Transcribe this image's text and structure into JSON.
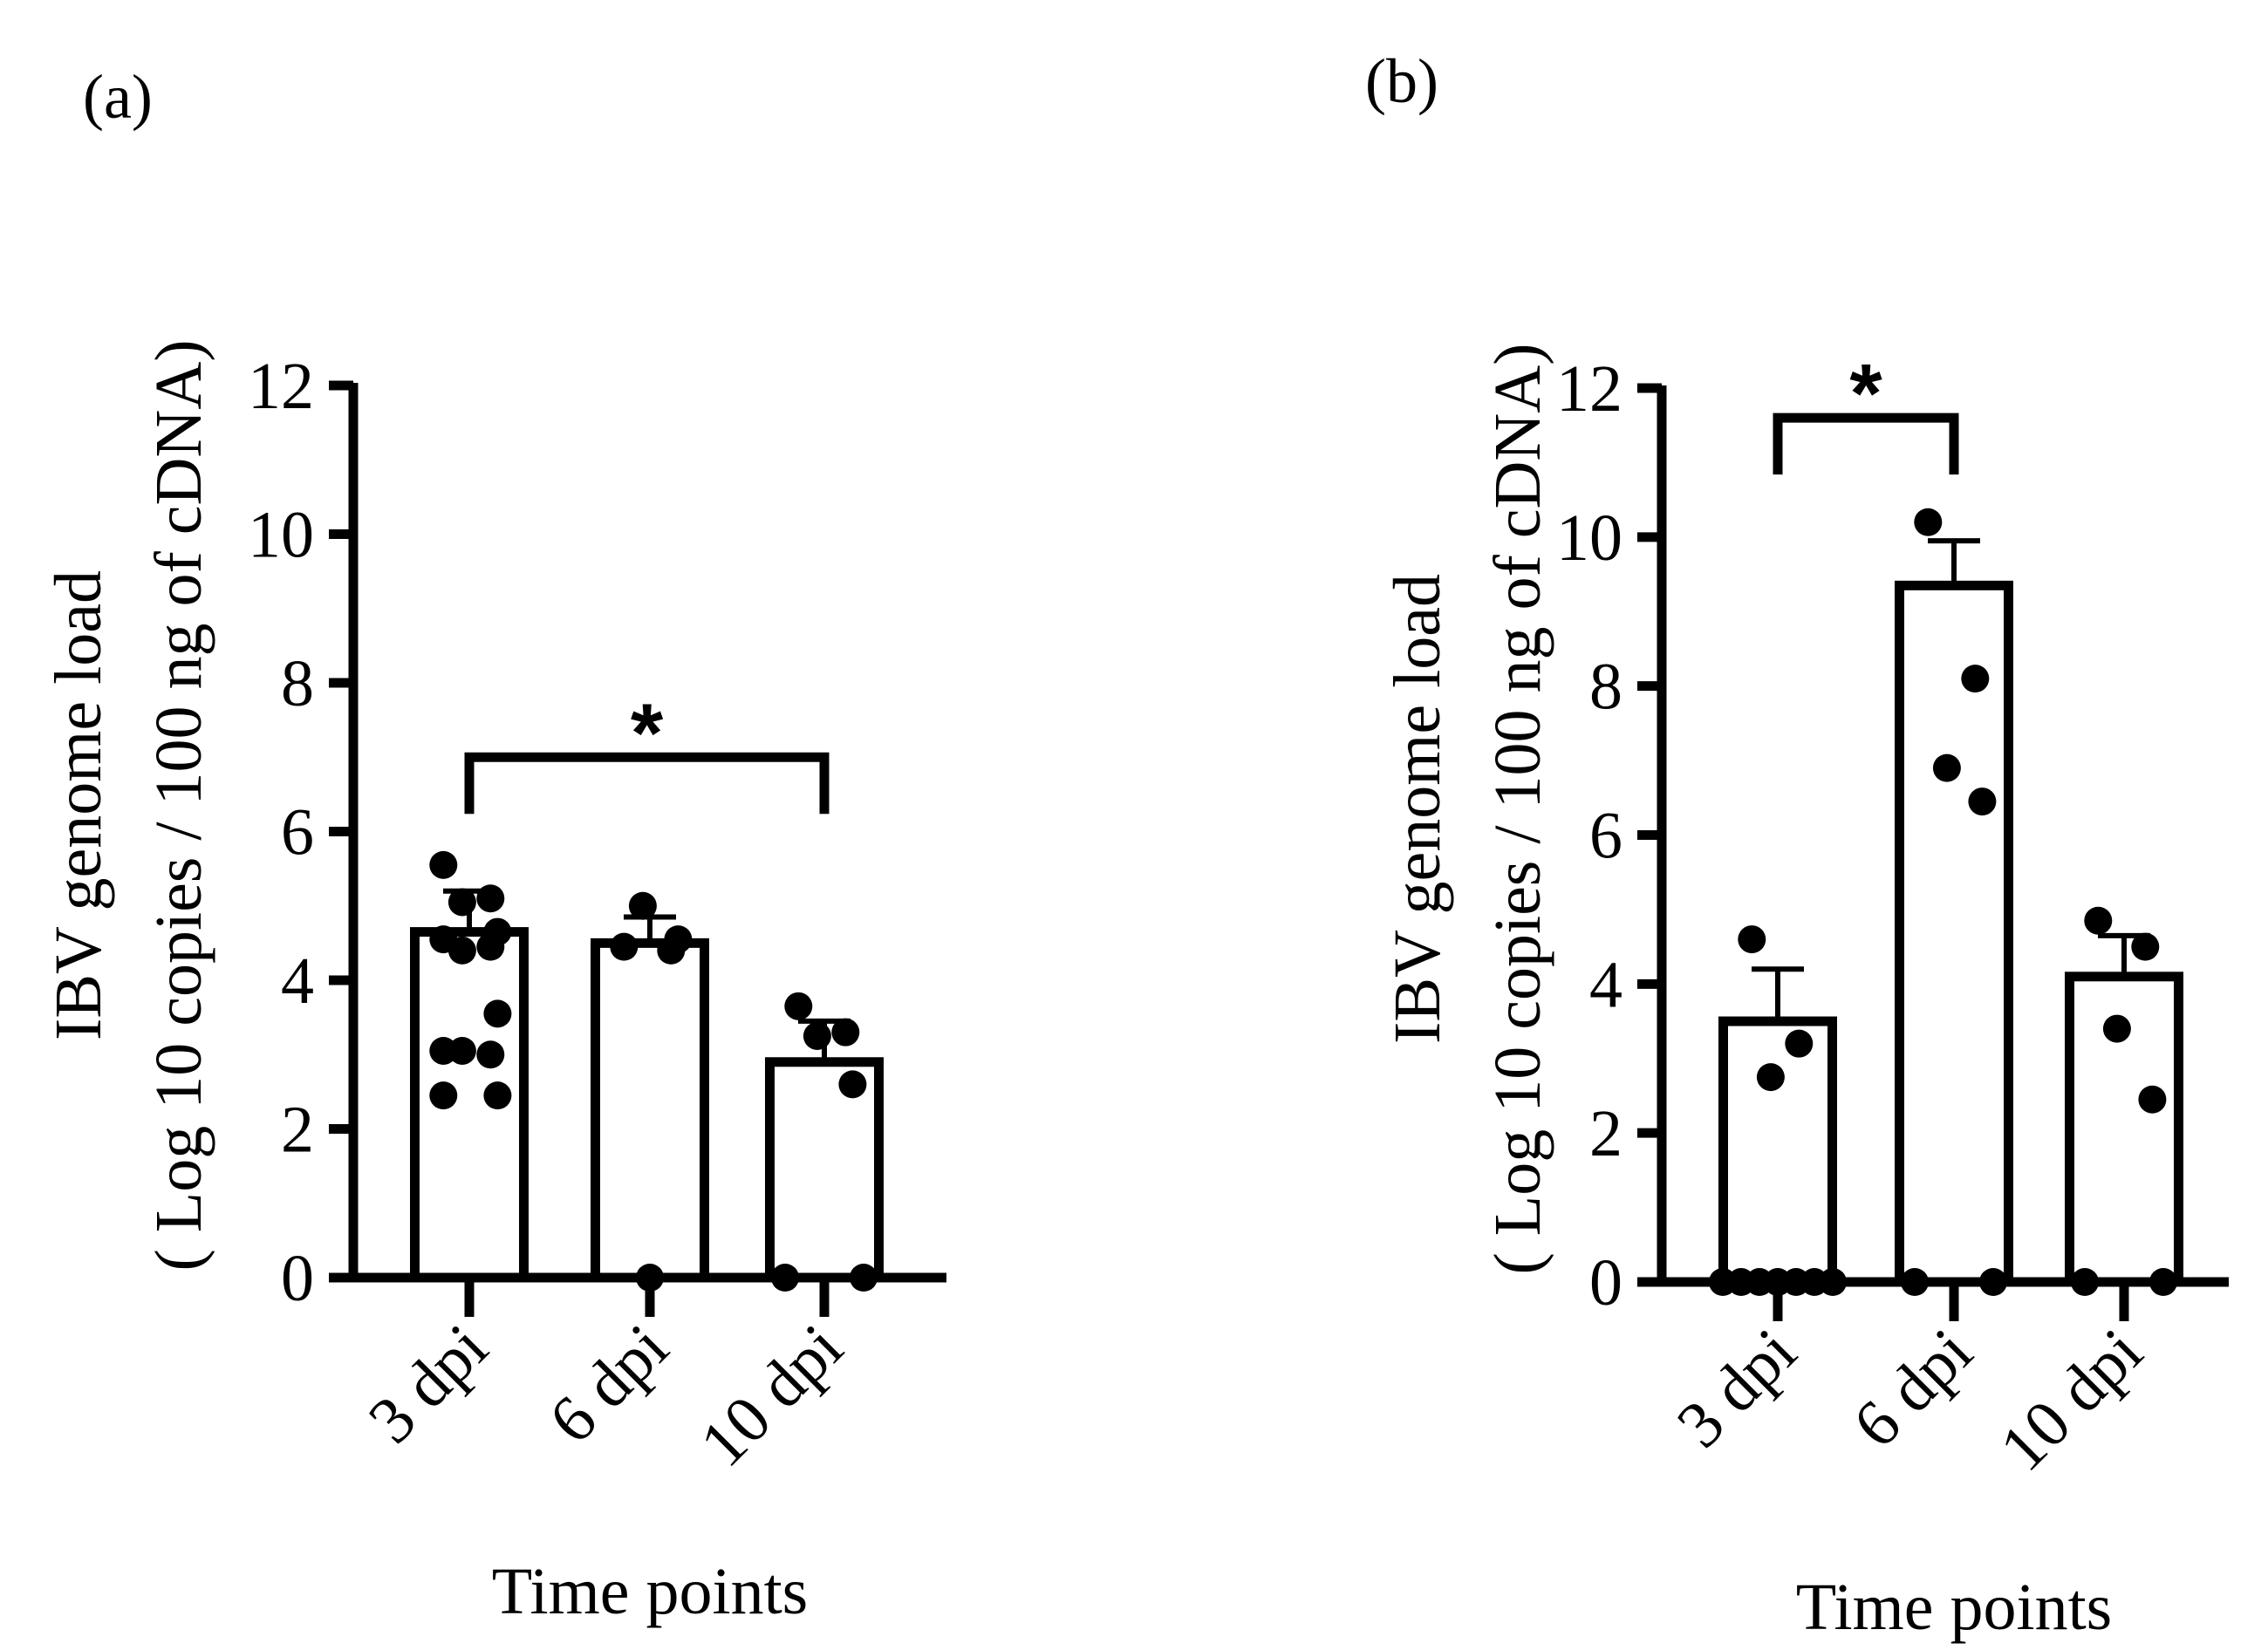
{
  "chart_data": [
    {
      "panel_label": "(a)",
      "type": "bar",
      "categories": [
        "3 dpi",
        "6 dpi",
        "10 dpi"
      ],
      "values": [
        4.65,
        4.5,
        2.9
      ],
      "sem": [
        0.55,
        0.35,
        0.55
      ],
      "points": [
        [
          5.55,
          5.1,
          5.05,
          4.65,
          4.55,
          4.45,
          4.4,
          3.55,
          3.05,
          3.0,
          3.05,
          2.45,
          2.45
        ],
        [
          4.45,
          4.4,
          5.0,
          4.55,
          0.0
        ],
        [
          3.65,
          3.3,
          3.25,
          2.6,
          0.0,
          0.0
        ]
      ],
      "ylim": [
        0,
        12
      ],
      "yticks": [
        "0",
        "2",
        "4",
        "6",
        "8",
        "10",
        "12"
      ],
      "ylabel_line1": "IBV genome load",
      "ylabel_line2": "( Log 10 copies / 100 ng of cDNA)",
      "xlabel": "Time points",
      "significance": {
        "from": 0,
        "to": 2,
        "y": 7.0,
        "label": "*"
      },
      "colors": {
        "bar_fill": "#ffffff",
        "stroke": "#000000"
      }
    },
    {
      "panel_label": "(b)",
      "type": "bar",
      "categories": [
        "3 dpi",
        "6 dpi",
        "10 dpi"
      ],
      "values": [
        3.5,
        9.35,
        4.1
      ],
      "sem": [
        0.7,
        0.6,
        0.55
      ],
      "points": [
        [
          4.6,
          3.2,
          2.75,
          0.0,
          0.0,
          0.0,
          0.0,
          0.0,
          0.0,
          0.0
        ],
        [
          10.2,
          8.1,
          6.9,
          6.45,
          0.0,
          0.0
        ],
        [
          4.85,
          4.5,
          3.4,
          2.45,
          0.0,
          0.0
        ]
      ],
      "ylim": [
        0,
        12
      ],
      "yticks": [
        "0",
        "2",
        "4",
        "6",
        "8",
        "10",
        "12"
      ],
      "ylabel_line1": "IBV genome load",
      "ylabel_line2": "( Log 10 copies / 100 ng of cDNA)",
      "xlabel": "Time points",
      "significance": {
        "from": 0,
        "to": 1,
        "y": 11.6,
        "label": "*"
      },
      "colors": {
        "bar_fill": "#ffffff",
        "stroke": "#000000"
      }
    }
  ]
}
